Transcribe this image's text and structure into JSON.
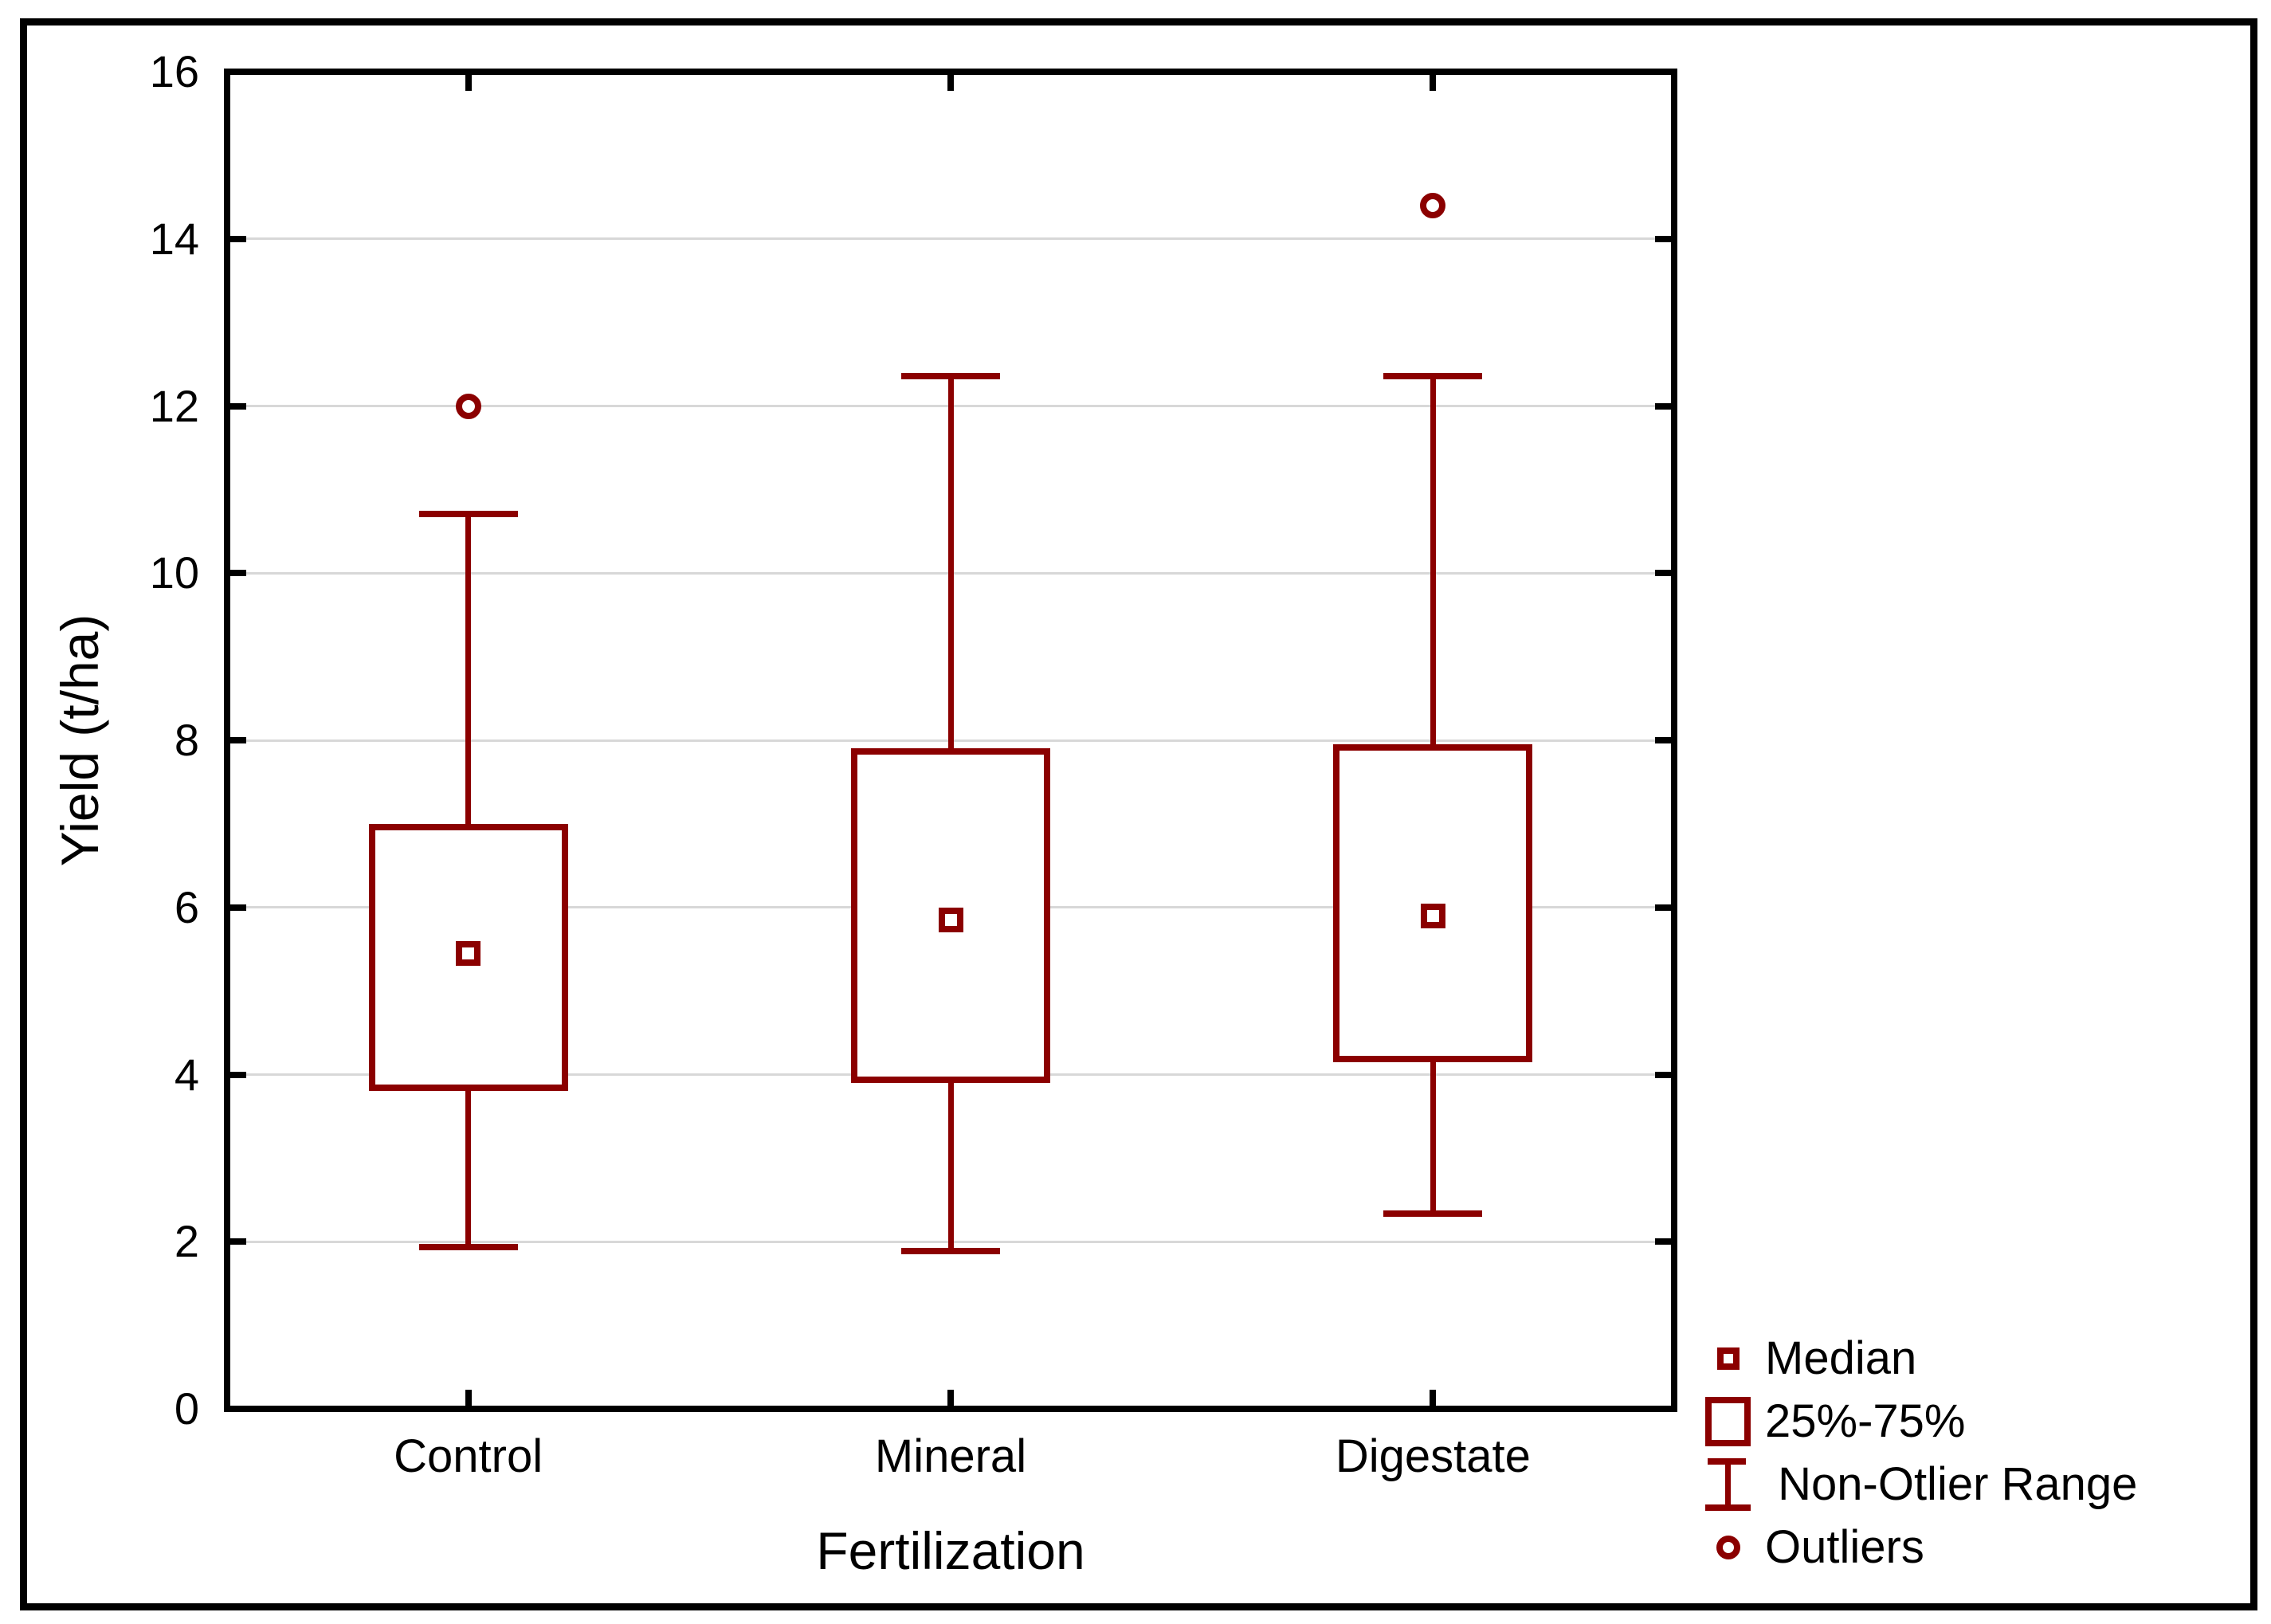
{
  "figure": {
    "background": "#FFFFFF",
    "border_color": "#000000"
  },
  "colors": {
    "box": "#8B0000",
    "grid": "#D8D8D8",
    "axis": "#000000",
    "text": "#000000"
  },
  "chart_data": {
    "type": "boxplot",
    "title": "",
    "xlabel": "Fertilization",
    "ylabel": "Yield (t/ha)",
    "ylim": [
      0,
      16
    ],
    "yticks": [
      0,
      2,
      4,
      6,
      8,
      10,
      12,
      14,
      16
    ],
    "grid": "horizontal-light",
    "legend_position": "bottom-right",
    "categories": [
      "Control",
      "Mineral",
      "Digestate"
    ],
    "series": [
      {
        "name": "Control",
        "whisker_low": 1.9,
        "q1": 3.8,
        "median": 5.45,
        "q3": 7.0,
        "whisker_high": 10.75,
        "outliers": [
          12.0
        ]
      },
      {
        "name": "Mineral",
        "whisker_low": 1.85,
        "q1": 3.9,
        "median": 5.85,
        "q3": 7.9,
        "whisker_high": 12.4,
        "outliers": []
      },
      {
        "name": "Digestate",
        "whisker_low": 2.3,
        "q1": 4.15,
        "median": 5.9,
        "q3": 7.95,
        "whisker_high": 12.4,
        "outliers": [
          14.4
        ]
      }
    ],
    "legend": [
      {
        "marker": "median-square",
        "label": "Median"
      },
      {
        "marker": "iqr-box",
        "label": "25%-75%"
      },
      {
        "marker": "whisker-range",
        "label": " Non-Otlier Range"
      },
      {
        "marker": "outlier-circle",
        "label": "Outliers"
      }
    ]
  }
}
